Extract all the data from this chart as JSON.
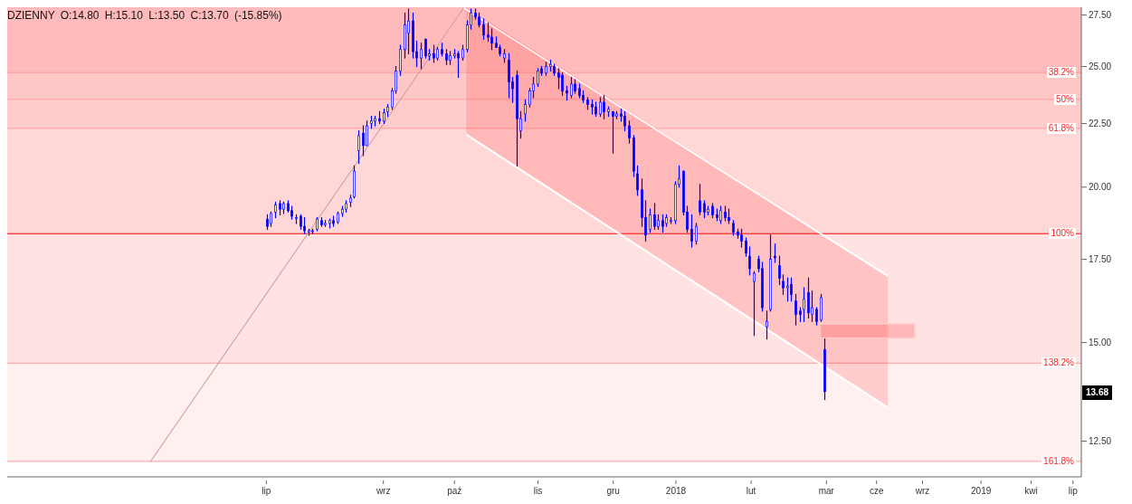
{
  "chart_data": {
    "type": "candlestick",
    "title": "DZIENNY O:14.80 H:15.10 L:13.50 C:13.70 (-15.85%)",
    "color": "#0000ff",
    "log": true,
    "ylim": [
      11.7,
      27.9
    ],
    "yticks": [
      {
        "value": 12.5,
        "label": "12.50"
      },
      {
        "value": 15,
        "label": "15.00"
      },
      {
        "value": 17.5,
        "label": "17.50"
      },
      {
        "value": 20,
        "label": "20.00"
      },
      {
        "value": 22.5,
        "label": "22.50"
      },
      {
        "value": 25,
        "label": "25.00"
      },
      {
        "value": 27.5,
        "label": "27.50"
      }
    ],
    "categories": [
      null,
      null,
      null,
      null,
      null,
      null,
      null,
      null,
      null,
      null,
      null,
      null,
      null,
      null,
      null,
      null,
      null,
      null,
      null,
      null,
      null,
      null,
      null,
      null,
      null,
      null,
      null,
      null,
      null,
      null,
      null,
      null,
      null,
      null,
      null,
      null,
      null,
      null,
      null,
      null,
      null,
      null,
      null,
      null,
      null,
      null,
      null,
      null,
      null,
      null,
      null,
      null,
      null,
      null,
      null,
      null,
      null,
      null,
      null,
      null,
      null,
      null,
      "lip",
      null,
      null,
      null,
      null,
      null,
      null,
      null,
      null,
      null,
      null,
      null,
      null,
      null,
      null,
      null,
      null,
      null,
      null,
      null,
      null,
      null,
      null,
      null,
      null,
      null,
      null,
      null,
      "wrz",
      null,
      null,
      null,
      null,
      null,
      null,
      null,
      null,
      null,
      null,
      null,
      null,
      null,
      null,
      null,
      null,
      "paź",
      null,
      null,
      null,
      null,
      null,
      null,
      null,
      null,
      null,
      null,
      null,
      null,
      null,
      null,
      null,
      null,
      null,
      null,
      null,
      "lis",
      null,
      null,
      null,
      null,
      null,
      null,
      null,
      null,
      null,
      null,
      null,
      null,
      null,
      null,
      null,
      null,
      null,
      "gru",
      null,
      null,
      null,
      null,
      null,
      null,
      null,
      null,
      null,
      null,
      null,
      null,
      null,
      null,
      "2018",
      null,
      null,
      null,
      null,
      null,
      null,
      null,
      null,
      null,
      null,
      null,
      null,
      null,
      null,
      null,
      null,
      null,
      "lut",
      null,
      null,
      null,
      null,
      null,
      null,
      null,
      null,
      null,
      null,
      null,
      null,
      null,
      null,
      null,
      null,
      null,
      "mar",
      null,
      null,
      null,
      null,
      null,
      null,
      null,
      null,
      null,
      null,
      null,
      "cze",
      null,
      null,
      null,
      null,
      null,
      null,
      null,
      null,
      null,
      null,
      "wrz",
      null,
      null,
      null,
      null,
      null,
      null,
      null,
      null,
      null,
      null,
      null,
      null,
      null,
      "2019",
      null,
      null,
      null,
      null,
      null,
      null,
      null,
      null,
      null,
      null,
      null,
      "kwi",
      null,
      null,
      null,
      null,
      null,
      null,
      null,
      null,
      null,
      "lip",
      null,
      null
    ],
    "ohlc": [
      null,
      null,
      null,
      null,
      null,
      null,
      null,
      null,
      null,
      null,
      null,
      null,
      null,
      null,
      null,
      null,
      null,
      null,
      null,
      null,
      null,
      null,
      null,
      null,
      null,
      null,
      null,
      null,
      null,
      null,
      null,
      null,
      null,
      null,
      null,
      null,
      null,
      null,
      null,
      null,
      null,
      null,
      null,
      null,
      null,
      null,
      null,
      null,
      null,
      null,
      null,
      null,
      null,
      null,
      null,
      null,
      null,
      null,
      null,
      null,
      null,
      null,
      [
        18.85,
        19.0,
        18.5,
        18.6
      ],
      [
        18.7,
        19.1,
        18.6,
        19.05
      ],
      [
        19.1,
        19.45,
        18.9,
        19.35
      ],
      [
        19.4,
        19.5,
        19.0,
        19.2
      ],
      [
        19.2,
        19.45,
        19.05,
        19.4
      ],
      [
        19.4,
        19.5,
        19.1,
        19.15
      ],
      [
        19.15,
        19.3,
        18.85,
        18.95
      ],
      [
        18.9,
        19.0,
        18.7,
        18.9
      ],
      [
        18.95,
        19.0,
        18.5,
        18.6
      ],
      [
        18.6,
        18.9,
        18.35,
        18.45
      ],
      [
        18.4,
        18.5,
        18.3,
        18.45
      ],
      [
        18.45,
        18.5,
        18.35,
        18.45
      ],
      [
        18.5,
        18.9,
        18.45,
        18.85
      ],
      [
        18.8,
        18.9,
        18.6,
        18.65
      ],
      [
        18.65,
        18.8,
        18.6,
        18.7
      ],
      [
        18.7,
        18.85,
        18.55,
        18.8
      ],
      [
        18.8,
        18.95,
        18.6,
        18.7
      ],
      [
        18.75,
        19.1,
        18.7,
        19.05
      ],
      [
        19.05,
        19.3,
        18.95,
        19.2
      ],
      [
        19.2,
        19.5,
        19.1,
        19.4
      ],
      [
        19.45,
        19.7,
        19.3,
        19.6
      ],
      [
        19.65,
        20.8,
        19.6,
        20.6
      ],
      [
        21.4,
        22.2,
        20.9,
        22.0
      ],
      [
        22.1,
        22.4,
        21.2,
        21.6
      ],
      [
        21.6,
        22.6,
        21.6,
        22.4
      ],
      [
        22.5,
        22.8,
        22.3,
        22.6
      ],
      [
        22.6,
        22.8,
        22.4,
        22.7
      ],
      [
        22.7,
        23.0,
        22.5,
        22.6
      ],
      [
        22.6,
        23.1,
        22.5,
        22.95
      ],
      [
        23.0,
        23.3,
        22.8,
        23.2
      ],
      [
        23.2,
        24.0,
        23.1,
        23.9
      ],
      [
        23.9,
        25.0,
        23.8,
        24.8
      ],
      [
        24.8,
        26.0,
        24.6,
        25.8
      ],
      [
        25.8,
        27.6,
        25.4,
        27.0
      ],
      [
        26.6,
        27.8,
        25.6,
        27.2
      ],
      [
        27.2,
        27.6,
        25.4,
        25.7
      ],
      [
        25.7,
        26.2,
        25.0,
        25.4
      ],
      [
        25.4,
        26.1,
        24.9,
        25.8
      ],
      [
        26.3,
        26.3,
        25.4,
        25.5
      ],
      [
        25.5,
        25.8,
        25.3,
        25.6
      ],
      [
        25.6,
        26.0,
        25.2,
        25.4
      ],
      [
        25.4,
        25.9,
        25.3,
        25.8
      ],
      [
        25.8,
        26.1,
        25.5,
        25.6
      ],
      [
        25.6,
        25.8,
        25.1,
        25.3
      ],
      [
        25.3,
        25.7,
        25.1,
        25.5
      ],
      [
        25.5,
        25.8,
        25.4,
        25.6
      ],
      [
        25.6,
        25.7,
        24.5,
        25.4
      ],
      [
        25.4,
        26.0,
        25.3,
        25.8
      ],
      [
        25.8,
        27.2,
        25.7,
        27.0
      ],
      [
        27.0,
        27.8,
        26.8,
        27.6
      ],
      [
        27.6,
        27.8,
        27.3,
        27.4
      ],
      [
        27.4,
        27.6,
        26.9,
        27.0
      ],
      [
        27.0,
        27.3,
        26.3,
        26.5
      ],
      [
        26.5,
        27.1,
        26.2,
        26.4
      ],
      [
        26.4,
        26.8,
        25.8,
        26.1
      ],
      [
        26.1,
        26.4,
        25.9,
        25.9
      ],
      [
        25.9,
        26.0,
        25.5,
        25.6
      ],
      [
        25.4,
        25.8,
        25.2,
        25.6
      ],
      [
        25.3,
        25.6,
        23.6,
        24.3
      ],
      [
        24.3,
        24.5,
        23.4,
        24.0
      ],
      [
        24.6,
        24.8,
        20.8,
        22.7
      ],
      [
        22.2,
        23.0,
        21.9,
        22.7
      ],
      [
        22.9,
        23.5,
        22.6,
        23.3
      ],
      [
        23.3,
        24.0,
        23.2,
        23.9
      ],
      [
        23.9,
        24.5,
        23.6,
        24.2
      ],
      [
        24.2,
        24.9,
        24.1,
        24.8
      ],
      [
        24.9,
        25.0,
        24.6,
        24.7
      ],
      [
        24.7,
        25.2,
        24.6,
        25.0
      ],
      [
        25.0,
        25.3,
        24.8,
        25.1
      ],
      [
        25.0,
        25.1,
        24.6,
        24.7
      ],
      [
        24.7,
        24.9,
        24.0,
        24.5
      ],
      [
        24.6,
        24.7,
        23.7,
        23.9
      ],
      [
        23.9,
        24.1,
        23.5,
        23.8
      ],
      [
        23.7,
        24.5,
        23.6,
        24.2
      ],
      [
        24.2,
        24.4,
        23.8,
        23.9
      ],
      [
        24.0,
        24.2,
        23.6,
        23.7
      ],
      [
        23.7,
        23.9,
        23.4,
        23.5
      ],
      [
        23.5,
        23.6,
        23.1,
        23.3
      ],
      [
        23.3,
        23.5,
        22.9,
        23.2
      ],
      [
        23.2,
        23.4,
        22.8,
        22.9
      ],
      [
        22.9,
        23.6,
        22.8,
        23.4
      ],
      [
        23.4,
        23.7,
        22.7,
        23.0
      ],
      [
        23.0,
        23.2,
        22.8,
        23.1
      ],
      [
        23.0,
        23.0,
        21.3,
        22.8
      ],
      [
        22.8,
        23.0,
        22.7,
        22.9
      ],
      [
        22.9,
        23.1,
        22.6,
        22.8
      ],
      [
        22.8,
        23.0,
        22.2,
        22.4
      ],
      [
        22.4,
        22.6,
        21.7,
        21.9
      ],
      [
        21.9,
        22.0,
        20.4,
        20.6
      ],
      [
        20.5,
        20.8,
        19.7,
        19.9
      ],
      [
        19.9,
        20.3,
        18.6,
        18.9
      ],
      [
        18.9,
        19.5,
        18.1,
        18.3
      ],
      [
        18.5,
        19.2,
        18.4,
        19.0
      ],
      [
        19.0,
        19.4,
        18.5,
        18.6
      ],
      [
        18.6,
        19.0,
        18.5,
        18.8
      ],
      [
        18.8,
        19.0,
        18.4,
        18.6
      ],
      [
        18.7,
        19.0,
        18.6,
        18.9
      ],
      [
        18.8,
        18.9,
        18.7,
        18.8
      ],
      [
        18.8,
        20.2,
        18.7,
        20.1
      ],
      [
        20.1,
        20.8,
        20.0,
        20.3
      ],
      [
        20.6,
        20.6,
        19.0,
        19.1
      ],
      [
        19.1,
        19.3,
        18.4,
        18.5
      ],
      [
        18.5,
        19.0,
        17.9,
        18.1
      ],
      [
        18.1,
        18.7,
        18.0,
        18.6
      ],
      [
        19.5,
        20.1,
        19.0,
        19.1
      ],
      [
        19.4,
        19.5,
        18.9,
        19.1
      ],
      [
        19.1,
        19.3,
        19.0,
        19.2
      ],
      [
        19.3,
        19.4,
        18.9,
        19.0
      ],
      [
        19.0,
        19.2,
        18.8,
        18.9
      ],
      [
        18.8,
        19.3,
        18.7,
        19.15
      ],
      [
        19.1,
        19.3,
        18.8,
        18.9
      ],
      [
        18.9,
        19.2,
        18.7,
        18.8
      ],
      [
        18.7,
        18.8,
        18.3,
        18.4
      ],
      [
        18.4,
        18.5,
        18.2,
        18.3
      ],
      [
        18.3,
        18.5,
        17.9,
        18.1
      ],
      [
        18.1,
        18.2,
        17.6,
        17.7
      ],
      [
        17.6,
        17.9,
        17.0,
        17.2
      ],
      [
        16.8,
        17.1,
        15.2,
        17.05
      ],
      [
        17.5,
        17.6,
        17.1,
        17.2
      ],
      [
        17.2,
        17.4,
        15.9,
        16.0
      ],
      [
        15.45,
        15.9,
        15.1,
        15.6
      ],
      [
        15.95,
        18.3,
        15.9,
        17.5
      ],
      [
        17.6,
        18.0,
        17.4,
        17.55
      ],
      [
        17.3,
        17.6,
        16.7,
        16.9
      ],
      [
        16.8,
        17.0,
        16.4,
        16.6
      ],
      [
        16.6,
        16.9,
        16.2,
        16.65
      ],
      [
        16.7,
        16.9,
        16.2,
        16.4
      ],
      [
        16.2,
        16.4,
        15.5,
        15.8
      ],
      [
        15.9,
        16.0,
        15.6,
        15.8
      ],
      [
        15.95,
        16.6,
        15.6,
        16.25
      ],
      [
        16.45,
        16.9,
        15.7,
        15.85
      ],
      [
        15.8,
        16.5,
        15.6,
        16.0
      ],
      [
        15.95,
        16.0,
        15.5,
        15.6
      ],
      [
        15.65,
        16.4,
        15.6,
        16.3
      ],
      [
        14.8,
        15.1,
        13.5,
        13.7
      ],
      null,
      null,
      null,
      null,
      null,
      null,
      null,
      null,
      null,
      null,
      null,
      null,
      null,
      null,
      null,
      null,
      null,
      null,
      null,
      null,
      null,
      null,
      null,
      null,
      null,
      null,
      null,
      null,
      null,
      null,
      null,
      null,
      null,
      null,
      null,
      null,
      null,
      null,
      null,
      null,
      null,
      null,
      null,
      null,
      null,
      null,
      null,
      null,
      null,
      null,
      null,
      null,
      null,
      null,
      null,
      null,
      null,
      null,
      null,
      null,
      null
    ],
    "bands": [
      {
        "axis": "y",
        "from": 24.72,
        "to": 27.9,
        "color": "#ffbbbb"
      },
      {
        "axis": "y",
        "from": 23.53,
        "to": 24.72,
        "color": "#ffc6c6"
      },
      {
        "axis": "y",
        "from": 22.3,
        "to": 23.53,
        "color": "#ffcccc"
      },
      {
        "axis": "y",
        "from": 18.35,
        "to": 22.3,
        "color": "#ffd7d7"
      },
      {
        "axis": "y",
        "from": 14.44,
        "to": 18.35,
        "color": "#ffe3e3"
      },
      {
        "axis": "y",
        "from": 12.04,
        "to": 14.44,
        "color": "#fff0f0"
      }
    ],
    "ref_lines": [
      {
        "axis": "y",
        "value": 24.72,
        "color": "#ff9999"
      },
      {
        "axis": "y",
        "value": 23.53,
        "color": "#ff9999"
      },
      {
        "axis": "y",
        "value": 22.3,
        "color": "#ff9999"
      },
      {
        "axis": "y",
        "value": 18.35,
        "color": "#ff0000"
      },
      {
        "axis": "y",
        "value": 14.44,
        "color": "#ff9999"
      },
      {
        "axis": "y",
        "value": 12.04,
        "color": "#ff9999"
      }
    ],
    "annotations": [
      {
        "text": "13.68",
        "y": 13.68
      },
      {
        "text": "38.2%",
        "y": 24.72
      },
      {
        "text": "50%",
        "y": 23.53
      },
      {
        "text": "61.8%",
        "y": 22.3
      },
      {
        "text": "100%",
        "y": 18.35
      },
      {
        "text": "138.2%",
        "y": 14.44
      },
      {
        "text": "161.8%",
        "y": 12.04
      }
    ]
  }
}
